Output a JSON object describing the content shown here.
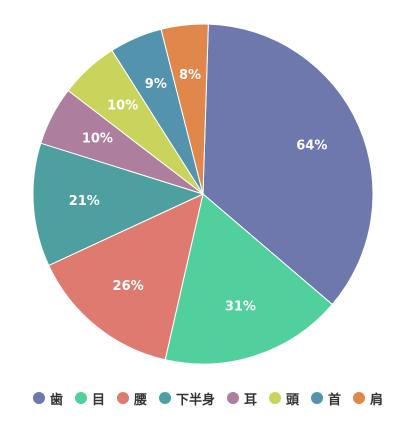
{
  "chart_data": {
    "type": "pie",
    "title": "",
    "legend_position": "bottom",
    "categories": [
      "歯",
      "目",
      "腰",
      "下半身",
      "耳",
      "頭",
      "首",
      "肩"
    ],
    "values": [
      64,
      31,
      26,
      21,
      10,
      10,
      9,
      8
    ],
    "labels": [
      "64%",
      "31%",
      "26%",
      "21%",
      "10%",
      "10%",
      "9%",
      "8%"
    ],
    "colors": [
      "#6e78ad",
      "#51cf9c",
      "#df7a70",
      "#4e9f9f",
      "#ae7e9f",
      "#c9d45c",
      "#5393ad",
      "#e0884c"
    ]
  }
}
